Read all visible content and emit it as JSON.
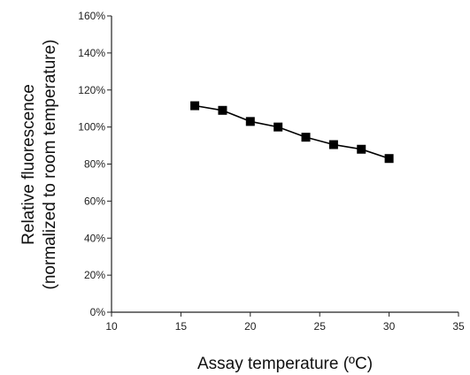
{
  "chart_data": {
    "type": "line",
    "title": "",
    "xlabel": "Assay temperature (ºC)",
    "ylabel_lines": [
      "Relative fluorescence",
      "(normalized to room temperature)"
    ],
    "xlim": [
      10,
      35
    ],
    "ylim": [
      0,
      160
    ],
    "x_ticks": [
      10,
      15,
      20,
      25,
      30,
      35
    ],
    "x_tick_labels": [
      "10",
      "15",
      "20",
      "25",
      "30",
      "35"
    ],
    "y_ticks": [
      0,
      20,
      40,
      60,
      80,
      100,
      120,
      140,
      160
    ],
    "y_tick_labels": [
      "0%",
      "20%",
      "40%",
      "60%",
      "80%",
      "100%",
      "120%",
      "140%",
      "160%"
    ],
    "grid": false,
    "legend": "none",
    "series": [
      {
        "marker": "square",
        "color": "#000000",
        "x": [
          16,
          18,
          20,
          22,
          24,
          26,
          28,
          30
        ],
        "y": [
          111.5,
          109,
          103,
          100,
          94.5,
          90.5,
          88,
          83
        ]
      }
    ]
  }
}
